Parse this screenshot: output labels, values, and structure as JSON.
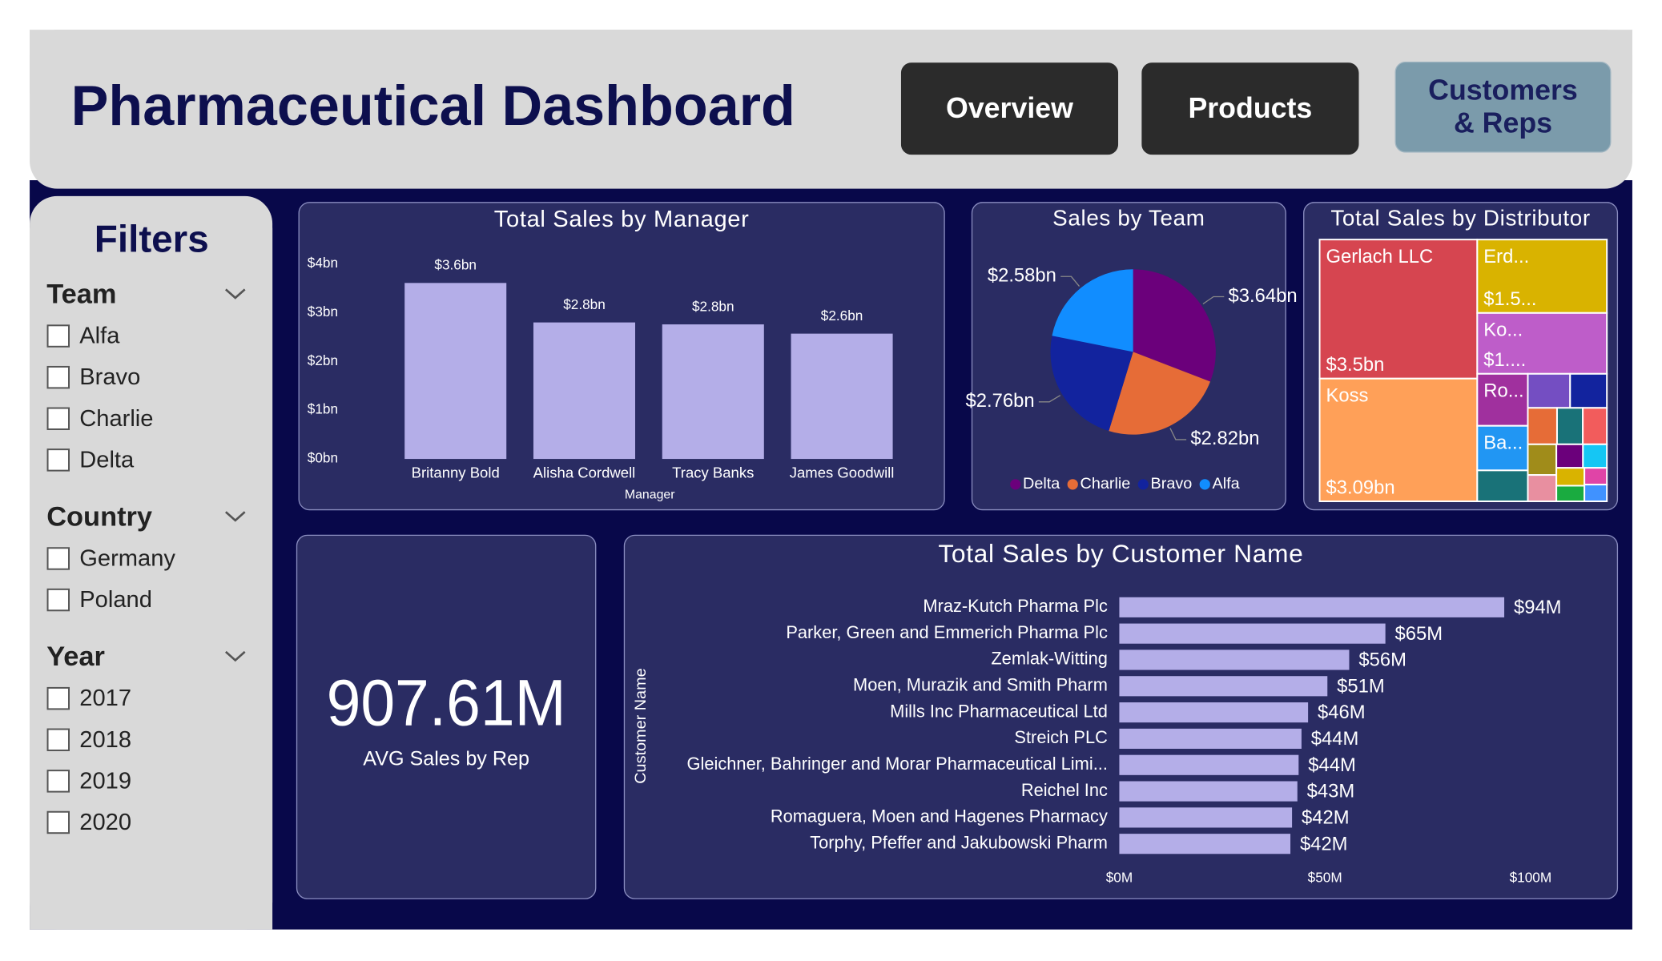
{
  "header": {
    "title": "Pharmaceutical Dashboard",
    "nav": [
      "Overview",
      "Products",
      "Customers & Reps"
    ]
  },
  "filters": {
    "title": "Filters",
    "groups": [
      {
        "name": "Team",
        "options": [
          "Alfa",
          "Bravo",
          "Charlie",
          "Delta"
        ]
      },
      {
        "name": "Country",
        "options": [
          "Germany",
          "Poland"
        ]
      },
      {
        "name": "Year",
        "options": [
          "2017",
          "2018",
          "2019",
          "2020"
        ]
      }
    ]
  },
  "kpi": {
    "value": "907.61M",
    "label": "AVG Sales by Rep"
  },
  "chart_data": [
    {
      "type": "bar",
      "title": "Total Sales by Manager",
      "x_label": "Manager",
      "categories": [
        "Britanny Bold",
        "Alisha Cordwell",
        "Tracy Banks",
        "James Goodwill"
      ],
      "values": [
        3.61,
        2.8,
        2.76,
        2.57
      ],
      "value_labels": [
        "$3.6bn",
        "$2.8bn",
        "$2.8bn",
        "$2.6bn"
      ],
      "color": "#b4aee8",
      "ylim": [
        0,
        4
      ],
      "yticks": [
        {
          "value": 0,
          "label": "$0bn"
        },
        {
          "value": 1,
          "label": "$1bn"
        },
        {
          "value": 2,
          "label": "$2bn"
        },
        {
          "value": 3,
          "label": "$3bn"
        },
        {
          "value": 4,
          "label": "$4bn"
        }
      ]
    },
    {
      "type": "pie",
      "title": "Sales by Team",
      "categories": [
        "Delta",
        "Charlie",
        "Bravo",
        "Alfa"
      ],
      "values": [
        3.64,
        2.82,
        2.76,
        2.58
      ],
      "value_labels": [
        "$3.64bn",
        "$2.82bn",
        "$2.76bn",
        "$2.58bn"
      ],
      "colors": [
        "#6b007b",
        "#e66c37",
        "#12239e",
        "#118dff"
      ]
    },
    {
      "type": "treemap",
      "title": "Total Sales by Distributor",
      "categories": [
        "Gerlach LLC",
        "Koss",
        "Erd...",
        "Ko...",
        "Ro...",
        "Ba...",
        null,
        null,
        null,
        null,
        null,
        null,
        null,
        null,
        null,
        null,
        null,
        null,
        null,
        null
      ],
      "values": [
        3.5,
        3.09,
        1.52,
        1.26,
        0.42,
        0.36,
        0.25,
        0.23,
        0.2,
        0.17,
        0.15,
        0.14,
        0.14,
        0.12,
        0.1,
        0.09,
        0.08,
        0.07,
        0.06,
        0.06
      ],
      "value_labels": [
        "$3.5bn",
        "$3.09bn",
        "$1.5...",
        "$1....",
        null,
        null,
        null,
        null,
        null,
        null,
        null,
        null,
        null,
        null,
        null,
        null,
        null,
        null,
        null,
        null
      ],
      "colors": [
        "#d64550",
        "#ffa058",
        "#d9b300",
        "#be5dc9",
        "#a0309e",
        "#2196f3",
        "#197278",
        "#744ec2",
        "#12239e",
        "#e66c37",
        "#197278",
        "#f25c5c",
        "#a08c1a",
        "#e88fa0",
        "#6b007b",
        "#15c6f4",
        "#d9b300",
        "#1aab40",
        "#e044a7",
        "#4092ff"
      ]
    },
    {
      "type": "hbar",
      "title": "Total Sales by Customer Name",
      "y_label": "Customer Name",
      "categories": [
        "Mraz-Kutch Pharma Plc",
        "Parker, Green and Emmerich Pharma Plc",
        "Zemlak-Witting",
        "Moen, Murazik and Smith Pharm",
        "Mills Inc Pharmaceutical Ltd",
        "Streich PLC",
        "Gleichner, Bahringer and Morar Pharmaceutical Limi...",
        "Reichel Inc",
        "Romaguera, Moen and Hagenes Pharmacy",
        "Torphy, Pfeffer and Jakubowski Pharm"
      ],
      "values": [
        93.6,
        64.7,
        55.9,
        50.6,
        45.9,
        44.3,
        43.6,
        43.3,
        42.0,
        41.6
      ],
      "value_labels": [
        "$94M",
        "$65M",
        "$56M",
        "$51M",
        "$46M",
        "$44M",
        "$44M",
        "$43M",
        "$42M",
        "$42M"
      ],
      "color": "#b4aee8",
      "xlim": [
        0,
        100
      ],
      "xticks": [
        {
          "value": 0,
          "label": "$0M"
        },
        {
          "value": 50,
          "label": "$50M"
        },
        {
          "value": 100,
          "label": "$100M"
        }
      ]
    }
  ]
}
